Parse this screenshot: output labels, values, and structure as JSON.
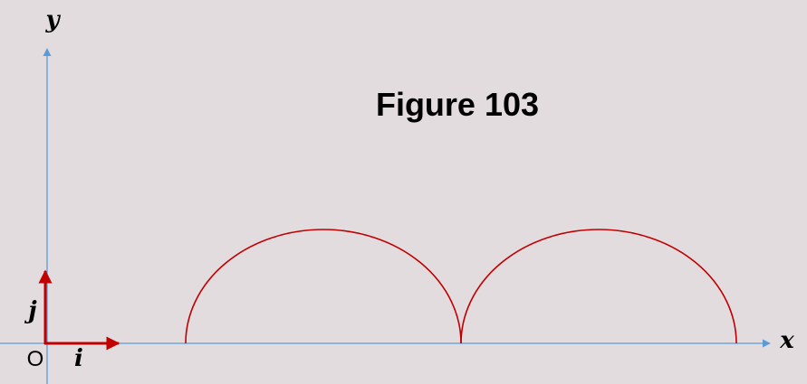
{
  "title": "Figure 103",
  "axes": {
    "x_label": "x",
    "y_label": "y",
    "origin_label": "O",
    "axis_color": "#5b9bd5"
  },
  "unit_vectors": {
    "i_label": "i",
    "j_label": "j",
    "color": "#c00000"
  },
  "curve": {
    "type": "cycloid-like arches (two semicircular arcs)",
    "arch_count": 2,
    "color": "#c00000"
  },
  "background_color": "#e3dcdf"
}
